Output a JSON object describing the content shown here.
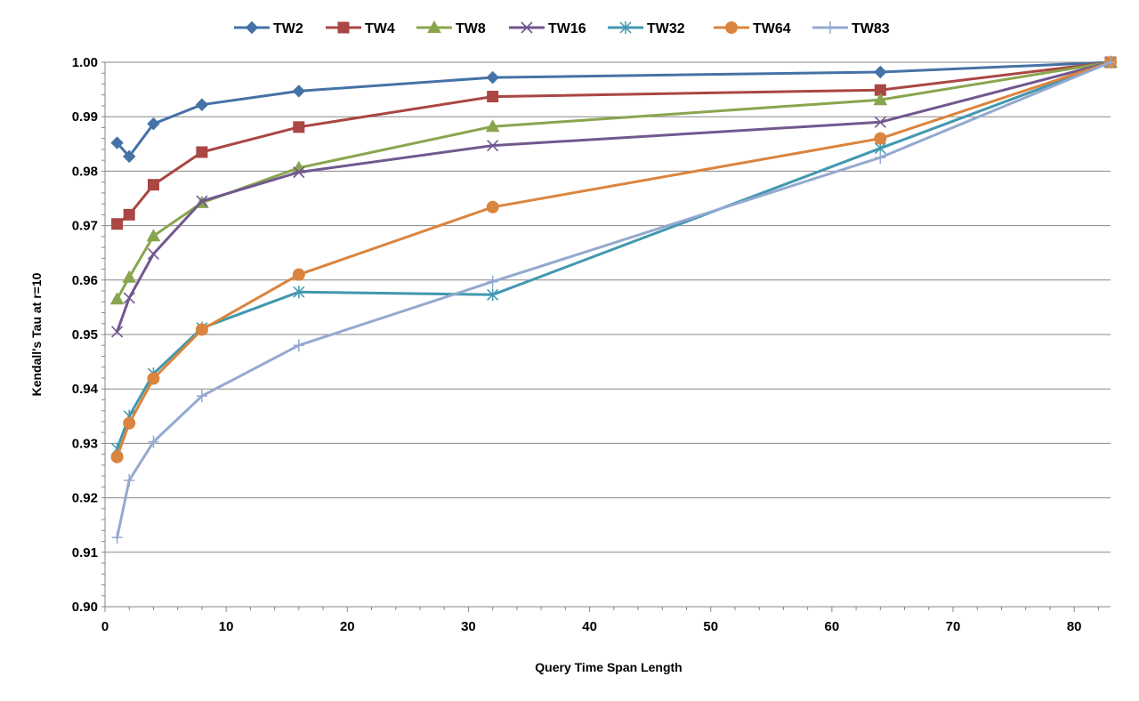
{
  "chart_data": {
    "type": "line",
    "xlabel": "Query Time Span Length",
    "ylabel": "Kendall's Tau at r=10",
    "xlim": [
      0,
      83
    ],
    "ylim": [
      0.9,
      1.0
    ],
    "x_ticks": [
      "0",
      "10",
      "20",
      "30",
      "40",
      "50",
      "60",
      "70",
      "80"
    ],
    "y_ticks": [
      "0.90",
      "0.91",
      "0.92",
      "0.93",
      "0.94",
      "0.95",
      "0.96",
      "0.97",
      "0.98",
      "0.99",
      "1.00"
    ],
    "x": [
      1,
      2,
      4,
      8,
      16,
      32,
      64,
      83
    ],
    "grid": "horizontal",
    "legend_position": "top",
    "series": [
      {
        "name": "TW2",
        "color": "#4572A7",
        "marker": "diamond",
        "values": [
          0.9852,
          0.9827,
          0.9887,
          0.9922,
          0.9947,
          0.9972,
          0.9982,
          1.0
        ]
      },
      {
        "name": "TW4",
        "color": "#AA4643",
        "marker": "square",
        "values": [
          0.9703,
          0.972,
          0.9775,
          0.9835,
          0.9881,
          0.9937,
          0.9949,
          1.0
        ]
      },
      {
        "name": "TW8",
        "color": "#89A54E",
        "marker": "triangle",
        "values": [
          0.9565,
          0.9605,
          0.9681,
          0.9742,
          0.9806,
          0.9882,
          0.9931,
          1.0
        ]
      },
      {
        "name": "TW16",
        "color": "#71588F",
        "marker": "x",
        "values": [
          0.9505,
          0.9567,
          0.9648,
          0.9745,
          0.9798,
          0.9847,
          0.989,
          1.0
        ]
      },
      {
        "name": "TW32",
        "color": "#4198AF",
        "marker": "asterisk",
        "values": [
          0.929,
          0.935,
          0.9428,
          0.9512,
          0.9578,
          0.9573,
          0.9842,
          1.0
        ]
      },
      {
        "name": "TW64",
        "color": "#DB843D",
        "marker": "circle",
        "values": [
          0.9275,
          0.9337,
          0.9419,
          0.9509,
          0.961,
          0.9734,
          0.986,
          1.0
        ]
      },
      {
        "name": "TW83",
        "color": "#93A9CF",
        "marker": "plus",
        "values": [
          0.9127,
          0.9232,
          0.9303,
          0.9387,
          0.948,
          0.9597,
          0.9825,
          1.0
        ]
      }
    ]
  }
}
